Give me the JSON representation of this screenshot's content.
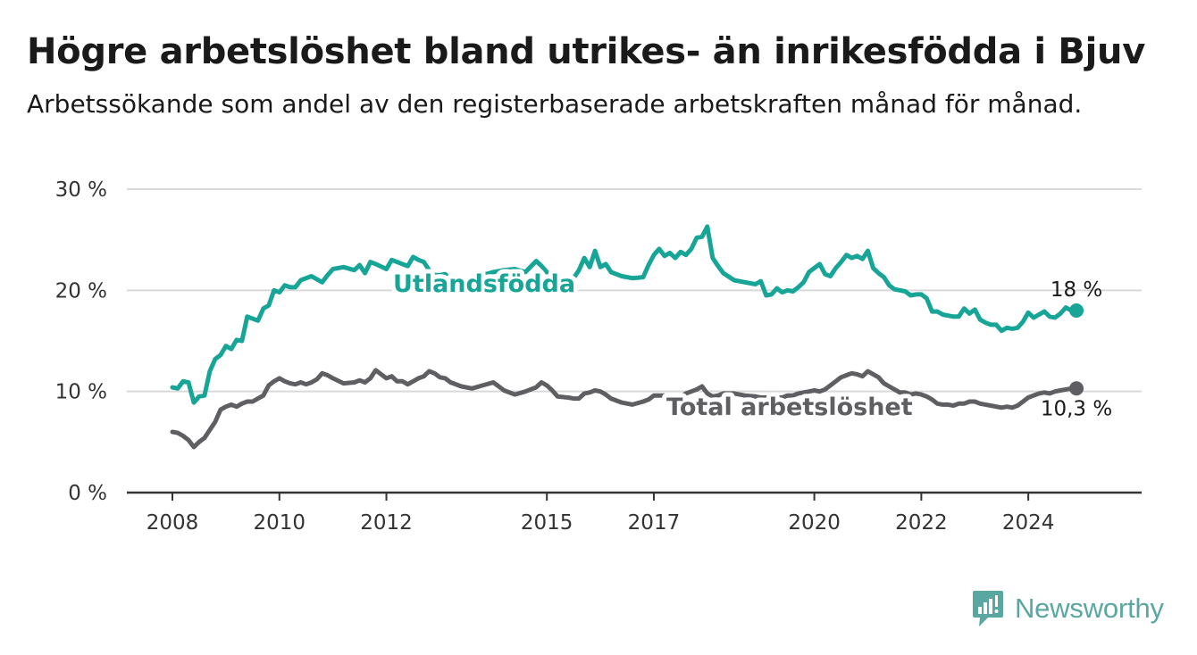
{
  "title": "Högre arbetslöshet bland utrikes- än inrikesfödda i Bjuv",
  "subtitle": "Arbetssökande som andel av den registerbaserade arbetskraften månad för månad.",
  "brand": {
    "name": "Newsworthy",
    "icon": "newsworthy-logo-icon",
    "color": "#5aa7a1"
  },
  "chart_data": {
    "type": "line",
    "title": "Högre arbetslöshet bland utrikes- än inrikesfödda i Bjuv",
    "subtitle": "Arbetssökande som andel av den registerbaserade arbetskraften månad för månad.",
    "xlabel": "",
    "ylabel": "",
    "ylim": [
      0,
      30
    ],
    "y_ticks": [
      0,
      10,
      20,
      30
    ],
    "y_tick_labels": [
      "0 %",
      "10 %",
      "20 %",
      "30 %"
    ],
    "x_ticks": [
      2008,
      2010,
      2012,
      2015,
      2017,
      2020,
      2022,
      2024
    ],
    "x_tick_labels": [
      "2008",
      "2010",
      "2012",
      "2015",
      "2017",
      "2020",
      "2022",
      "2024"
    ],
    "xlim": [
      2008.0,
      2025.25
    ],
    "grid": "horizontal",
    "legend": "inline labels",
    "series": [
      {
        "name": "Utlandsfödda",
        "color": "#16a596",
        "end_label": "18 %",
        "x": [
          2008.0,
          2008.1,
          2008.2,
          2008.3,
          2008.4,
          2008.5,
          2008.6,
          2008.7,
          2008.8,
          2008.9,
          2009.0,
          2009.1,
          2009.2,
          2009.3,
          2009.4,
          2009.5,
          2009.6,
          2009.7,
          2009.8,
          2009.9,
          2010.0,
          2010.1,
          2010.2,
          2010.3,
          2010.4,
          2010.5,
          2010.6,
          2010.7,
          2010.8,
          2010.9,
          2011.0,
          2011.2,
          2011.4,
          2011.5,
          2011.6,
          2011.7,
          2011.8,
          2012.0,
          2012.1,
          2012.2,
          2012.3,
          2012.4,
          2012.5,
          2012.6,
          2012.7,
          2012.8,
          2012.9,
          2013.0,
          2013.1,
          2013.2,
          2013.4,
          2013.6,
          2013.8,
          2014.0,
          2014.2,
          2014.4,
          2014.6,
          2014.8,
          2014.9,
          2015.0,
          2015.1,
          2015.2,
          2015.4,
          2015.5,
          2015.6,
          2015.7,
          2015.8,
          2015.9,
          2016.0,
          2016.1,
          2016.2,
          2016.4,
          2016.6,
          2016.8,
          2016.9,
          2017.0,
          2017.1,
          2017.2,
          2017.3,
          2017.4,
          2017.5,
          2017.6,
          2017.7,
          2017.8,
          2017.9,
          2018.0,
          2018.1,
          2018.2,
          2018.3,
          2018.5,
          2018.7,
          2018.9,
          2019.0,
          2019.1,
          2019.2,
          2019.3,
          2019.4,
          2019.5,
          2019.6,
          2019.7,
          2019.8,
          2019.9,
          2020.0,
          2020.1,
          2020.2,
          2020.3,
          2020.4,
          2020.5,
          2020.6,
          2020.7,
          2020.8,
          2020.9,
          2021.0,
          2021.1,
          2021.2,
          2021.3,
          2021.4,
          2021.5,
          2021.6,
          2021.7,
          2021.8,
          2021.9,
          2022.0,
          2022.1,
          2022.2,
          2022.3,
          2022.4,
          2022.5,
          2022.6,
          2022.7,
          2022.8,
          2022.9,
          2023.0,
          2023.1,
          2023.2,
          2023.3,
          2023.4,
          2023.5,
          2023.6,
          2023.7,
          2023.8,
          2023.9,
          2024.0,
          2024.1,
          2024.2,
          2024.3,
          2024.4,
          2024.5,
          2024.6,
          2024.7,
          2024.8,
          2024.9
        ],
        "values": [
          10.4,
          10.3,
          11.0,
          10.9,
          8.9,
          9.5,
          9.6,
          12.0,
          13.2,
          13.6,
          14.5,
          14.2,
          15.1,
          15.0,
          17.4,
          17.2,
          17.0,
          18.2,
          18.5,
          20.0,
          19.8,
          20.5,
          20.3,
          20.3,
          21.0,
          21.2,
          21.4,
          21.1,
          20.8,
          21.5,
          22.1,
          22.3,
          22.0,
          22.5,
          21.7,
          22.8,
          22.6,
          22.1,
          23.0,
          22.8,
          22.6,
          22.4,
          23.3,
          23.0,
          22.8,
          22.0,
          21.5,
          21.5,
          21.6,
          21.0,
          20.5,
          20.7,
          21.5,
          21.8,
          22.0,
          22.1,
          21.8,
          22.9,
          22.4,
          21.8,
          20.9,
          20.5,
          21.3,
          21.2,
          22.0,
          23.2,
          22.3,
          23.9,
          22.3,
          22.6,
          21.8,
          21.4,
          21.2,
          21.3,
          22.5,
          23.5,
          24.1,
          23.4,
          23.7,
          23.2,
          23.8,
          23.5,
          24.1,
          25.2,
          25.3,
          26.3,
          23.2,
          22.4,
          21.7,
          21.0,
          20.8,
          20.6,
          20.9,
          19.5,
          19.6,
          20.2,
          19.8,
          20.0,
          19.9,
          20.3,
          20.8,
          21.8,
          22.2,
          22.6,
          21.6,
          21.4,
          22.2,
          22.8,
          23.5,
          23.2,
          23.4,
          23.1,
          23.9,
          22.2,
          21.7,
          21.3,
          20.5,
          20.1,
          20.0,
          19.9,
          19.5,
          19.6,
          19.6,
          19.2,
          17.9,
          17.9,
          17.6,
          17.5,
          17.4,
          17.4,
          18.2,
          17.7,
          18.1,
          17.1,
          16.8,
          16.6,
          16.6,
          16.0,
          16.3,
          16.2,
          16.3,
          16.9,
          17.8,
          17.3,
          17.6,
          17.9,
          17.4,
          17.3,
          17.7,
          18.3,
          18.0,
          18.0
        ]
      },
      {
        "name": "Total arbetslöshet",
        "color": "#5f5f63",
        "end_label": "10,3 %",
        "x": [
          2008.0,
          2008.1,
          2008.2,
          2008.3,
          2008.4,
          2008.5,
          2008.6,
          2008.7,
          2008.8,
          2008.9,
          2009.0,
          2009.1,
          2009.2,
          2009.3,
          2009.4,
          2009.5,
          2009.6,
          2009.7,
          2009.8,
          2009.9,
          2010.0,
          2010.1,
          2010.2,
          2010.3,
          2010.4,
          2010.5,
          2010.6,
          2010.7,
          2010.8,
          2010.9,
          2011.0,
          2011.2,
          2011.4,
          2011.5,
          2011.6,
          2011.7,
          2011.8,
          2012.0,
          2012.1,
          2012.2,
          2012.3,
          2012.4,
          2012.5,
          2012.6,
          2012.7,
          2012.8,
          2012.9,
          2013.0,
          2013.1,
          2013.2,
          2013.4,
          2013.6,
          2013.8,
          2014.0,
          2014.2,
          2014.4,
          2014.6,
          2014.8,
          2014.9,
          2015.0,
          2015.1,
          2015.2,
          2015.4,
          2015.5,
          2015.6,
          2015.7,
          2015.8,
          2015.9,
          2016.0,
          2016.1,
          2016.2,
          2016.4,
          2016.6,
          2016.8,
          2016.9,
          2017.0,
          2017.1,
          2017.2,
          2017.3,
          2017.4,
          2017.5,
          2017.6,
          2017.7,
          2017.8,
          2017.9,
          2018.0,
          2018.1,
          2018.2,
          2018.3,
          2018.5,
          2018.7,
          2018.9,
          2019.0,
          2019.1,
          2019.2,
          2019.3,
          2019.4,
          2019.5,
          2019.6,
          2019.7,
          2019.8,
          2019.9,
          2020.0,
          2020.1,
          2020.2,
          2020.3,
          2020.4,
          2020.5,
          2020.6,
          2020.7,
          2020.8,
          2020.9,
          2021.0,
          2021.1,
          2021.2,
          2021.3,
          2021.4,
          2021.5,
          2021.6,
          2021.7,
          2021.8,
          2021.9,
          2022.0,
          2022.1,
          2022.2,
          2022.3,
          2022.4,
          2022.5,
          2022.6,
          2022.7,
          2022.8,
          2022.9,
          2023.0,
          2023.1,
          2023.2,
          2023.3,
          2023.4,
          2023.5,
          2023.6,
          2023.7,
          2023.8,
          2023.9,
          2024.0,
          2024.1,
          2024.2,
          2024.3,
          2024.4,
          2024.5,
          2024.6,
          2024.7,
          2024.8,
          2024.9
        ],
        "values": [
          6.0,
          5.9,
          5.6,
          5.2,
          4.5,
          5.0,
          5.4,
          6.2,
          7.0,
          8.2,
          8.5,
          8.7,
          8.5,
          8.8,
          9.0,
          9.0,
          9.3,
          9.6,
          10.6,
          11.0,
          11.3,
          11.0,
          10.8,
          10.7,
          10.9,
          10.7,
          10.9,
          11.2,
          11.8,
          11.6,
          11.3,
          10.8,
          10.9,
          11.1,
          10.9,
          11.3,
          12.1,
          11.3,
          11.5,
          11.0,
          11.0,
          10.7,
          11.0,
          11.3,
          11.5,
          12.0,
          11.8,
          11.4,
          11.3,
          10.9,
          10.5,
          10.3,
          10.6,
          10.9,
          10.1,
          9.7,
          10.0,
          10.4,
          10.9,
          10.6,
          10.1,
          9.5,
          9.4,
          9.3,
          9.3,
          9.8,
          9.9,
          10.1,
          10.0,
          9.7,
          9.3,
          8.9,
          8.7,
          9.0,
          9.2,
          9.6,
          9.6,
          9.6,
          9.4,
          9.5,
          9.5,
          9.8,
          10.0,
          10.2,
          10.5,
          9.8,
          9.5,
          9.6,
          9.8,
          9.8,
          9.6,
          9.5,
          9.4,
          9.4,
          9.3,
          9.4,
          9.4,
          9.6,
          9.6,
          9.8,
          9.9,
          10.0,
          10.1,
          10.0,
          10.2,
          10.6,
          11.0,
          11.4,
          11.6,
          11.8,
          11.7,
          11.5,
          12.0,
          11.7,
          11.4,
          10.8,
          10.5,
          10.2,
          9.9,
          9.9,
          9.7,
          9.8,
          9.7,
          9.5,
          9.2,
          8.8,
          8.7,
          8.7,
          8.6,
          8.8,
          8.8,
          9.0,
          9.0,
          8.8,
          8.7,
          8.6,
          8.5,
          8.4,
          8.5,
          8.4,
          8.6,
          9.0,
          9.4,
          9.6,
          9.8,
          9.9,
          9.8,
          10.0,
          10.1,
          10.2,
          10.3,
          10.3
        ]
      }
    ]
  }
}
